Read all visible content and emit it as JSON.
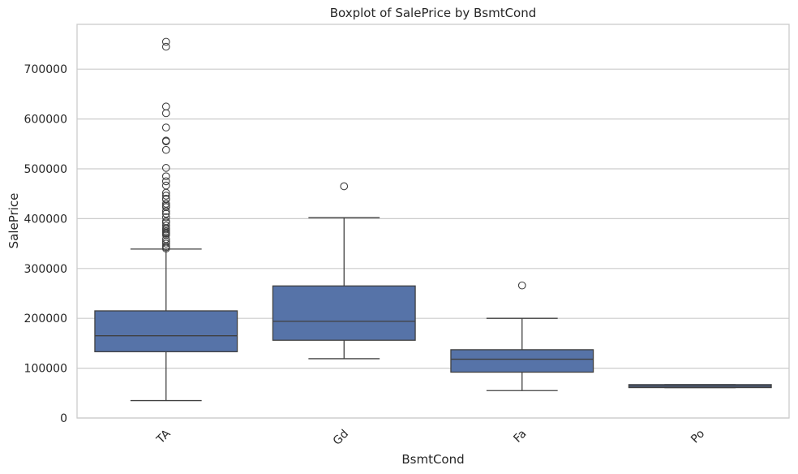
{
  "chart_data": {
    "type": "boxplot",
    "title": "Boxplot of SalePrice by BsmtCond",
    "xlabel": "BsmtCond",
    "ylabel": "SalePrice",
    "ylim": [
      0,
      790000
    ],
    "yticks": [
      0,
      100000,
      200000,
      300000,
      400000,
      500000,
      600000,
      700000
    ],
    "ytick_labels": [
      "0",
      "100000",
      "200000",
      "300000",
      "400000",
      "500000",
      "600000",
      "700000"
    ],
    "grid": true,
    "box_color": "#5673a8",
    "categories": [
      "TA",
      "Gd",
      "Fa",
      "Po"
    ],
    "boxes": [
      {
        "category": "TA",
        "whisker_low": 34900,
        "q1": 133000,
        "median": 165000,
        "q3": 215000,
        "whisker_high": 339000,
        "outliers": [
          755000,
          745000,
          625000,
          611657,
          582933,
          556581,
          555000,
          538000,
          501837,
          485000,
          475000,
          466500,
          451950,
          446261,
          440000,
          438780,
          430000,
          426000,
          423000,
          415298,
          410000,
          402861,
          395000,
          392000,
          386250,
          381000,
          378500,
          375000,
          372402,
          370878,
          369900,
          367294,
          359100,
          354000,
          350000,
          345000,
          342643,
          340000
        ]
      },
      {
        "category": "Gd",
        "whisker_low": 119000,
        "q1": 156000,
        "median": 194000,
        "q3": 265000,
        "whisker_high": 402000,
        "outliers": [
          465000
        ]
      },
      {
        "category": "Fa",
        "whisker_low": 55000,
        "q1": 92000,
        "median": 118000,
        "q3": 137000,
        "whisker_high": 200000,
        "outliers": [
          266000
        ]
      },
      {
        "category": "Po",
        "whisker_low": 61000,
        "q1": 61000,
        "median": 64000,
        "q3": 67000,
        "whisker_high": 67000,
        "outliers": []
      }
    ]
  }
}
